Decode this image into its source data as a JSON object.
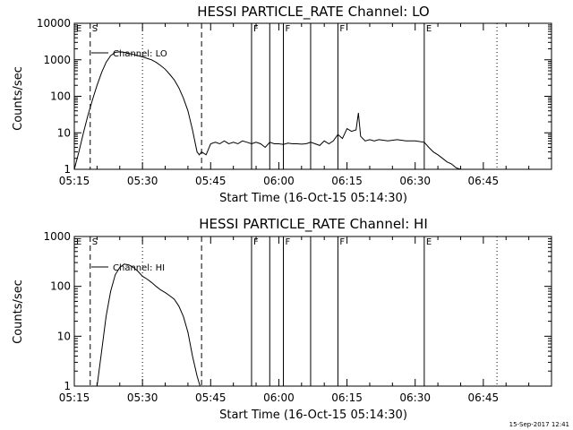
{
  "footer": {
    "timestamp": "15-Sep-2017 12:41"
  },
  "chart_data": [
    {
      "type": "line",
      "title": "HESSI PARTICLE_RATE Channel: LO",
      "xlabel": "Start Time (16-Oct-15 05:14:30)",
      "ylabel": "Counts/sec",
      "yscale": "log",
      "ylim": [
        1,
        10000
      ],
      "xlim": [
        "05:15",
        "07:00"
      ],
      "x_ticks": [
        "05:15",
        "05:30",
        "05:45",
        "06:00",
        "06:15",
        "06:30",
        "06:45"
      ],
      "y_ticks": [
        "1",
        "10",
        "100",
        "1000",
        "10000"
      ],
      "legend": {
        "label": "Channel: LO",
        "placement": "top-left"
      },
      "grid": false,
      "series": [
        {
          "x": [
            "05:15:00",
            "05:16:00",
            "05:17:00",
            "05:18:00",
            "05:19:00",
            "05:20:00",
            "05:21:00",
            "05:22:00",
            "05:23:00",
            "05:24:00",
            "05:25:00",
            "05:26:00",
            "05:27:00",
            "05:28:00",
            "05:29:00",
            "05:30:00",
            "05:31:00",
            "05:32:00",
            "05:33:00",
            "05:34:00",
            "05:35:00",
            "05:36:00",
            "05:37:00",
            "05:38:00",
            "05:39:00",
            "05:40:00",
            "05:41:00",
            "05:42:00",
            "05:42:30",
            "05:43:00",
            "05:44:00",
            "05:45:00",
            "05:46:00",
            "05:47:00",
            "05:48:00",
            "05:49:00",
            "05:50:00",
            "05:51:00",
            "05:52:00",
            "05:53:00",
            "05:54:00",
            "05:55:00",
            "05:56:00",
            "05:57:00",
            "05:58:00",
            "05:59:00",
            "06:00:00",
            "06:01:00",
            "06:02:00",
            "06:03:00",
            "06:04:00",
            "06:05:00",
            "06:06:00",
            "06:07:00",
            "06:08:00",
            "06:09:00",
            "06:10:00",
            "06:11:00",
            "06:12:00",
            "06:13:00",
            "06:14:00",
            "06:15:00",
            "06:16:00",
            "06:17:00",
            "06:17:30",
            "06:18:00",
            "06:19:00",
            "06:20:00",
            "06:21:00",
            "06:22:00",
            "06:24:00",
            "06:26:00",
            "06:28:00",
            "06:30:00",
            "06:32:00",
            "06:33:00",
            "06:34:00",
            "06:35:00",
            "06:36:00",
            "06:37:00",
            "06:38:00",
            "06:39:00",
            "06:40:00",
            "06:41:00",
            "06:42:00",
            "06:43:00"
          ],
          "y": [
            1,
            3,
            10,
            30,
            80,
            200,
            450,
            850,
            1300,
            1600,
            1650,
            1600,
            1500,
            1400,
            1300,
            1200,
            1100,
            1000,
            850,
            700,
            550,
            400,
            280,
            170,
            90,
            40,
            12,
            3,
            2.5,
            3,
            2.5,
            5,
            5.5,
            5,
            6,
            5,
            5.5,
            5,
            6,
            5.5,
            5,
            5.5,
            5,
            4,
            5.5,
            5,
            5,
            4.8,
            5.2,
            5,
            5,
            4.9,
            5,
            5.5,
            5,
            4.5,
            6,
            5,
            6,
            9,
            7,
            13,
            11,
            12,
            35,
            8,
            6,
            6.5,
            6,
            6.5,
            6,
            6.5,
            6,
            6,
            5.5,
            4,
            3,
            2.5,
            2,
            1.6,
            1.4,
            1.1,
            1.0,
            1,
            1,
            1
          ]
        }
      ],
      "vlines": [
        {
          "x": "05:18:30",
          "style": "dashed",
          "label": "S"
        },
        {
          "x": "05:43:00",
          "style": "dashed",
          "label": ""
        },
        {
          "x": "05:30:00",
          "style": "dotted",
          "label": ""
        },
        {
          "x": "06:48:00",
          "style": "dotted",
          "label": ""
        },
        {
          "x": "05:54:00",
          "style": "solid",
          "label": "F"
        },
        {
          "x": "05:58:00",
          "style": "solid",
          "label": ""
        },
        {
          "x": "06:01:00",
          "style": "solid",
          "label": "F"
        },
        {
          "x": "06:07:00",
          "style": "solid",
          "label": ""
        },
        {
          "x": "06:13:00",
          "style": "solid",
          "label": "F"
        },
        {
          "x": "06:32:00",
          "style": "solid",
          "label": "E"
        }
      ],
      "edge_label": "E"
    },
    {
      "type": "line",
      "title": "HESSI PARTICLE_RATE Channel: HI",
      "xlabel": "Start Time (16-Oct-15 05:14:30)",
      "ylabel": "Counts/sec",
      "yscale": "log",
      "ylim": [
        1,
        1000
      ],
      "xlim": [
        "05:15",
        "07:00"
      ],
      "x_ticks": [
        "05:15",
        "05:30",
        "05:45",
        "06:00",
        "06:15",
        "06:30",
        "06:45"
      ],
      "y_ticks": [
        "1",
        "10",
        "100",
        "1000"
      ],
      "legend": {
        "label": "Channel: HI",
        "placement": "top-left"
      },
      "grid": false,
      "series": [
        {
          "x": [
            "05:20:00",
            "05:21:00",
            "05:22:00",
            "05:23:00",
            "05:24:00",
            "05:25:00",
            "05:26:00",
            "05:27:00",
            "05:28:00",
            "05:29:00",
            "05:30:00",
            "05:31:00",
            "05:32:00",
            "05:33:00",
            "05:34:00",
            "05:35:00",
            "05:36:00",
            "05:37:00",
            "05:38:00",
            "05:39:00",
            "05:40:00",
            "05:41:00",
            "05:42:00",
            "05:42:40"
          ],
          "y": [
            1,
            5,
            25,
            80,
            170,
            240,
            280,
            270,
            240,
            200,
            160,
            140,
            120,
            100,
            85,
            75,
            65,
            55,
            40,
            25,
            12,
            4,
            1.6,
            1
          ]
        }
      ],
      "vlines": [
        {
          "x": "05:18:30",
          "style": "dashed",
          "label": "S"
        },
        {
          "x": "05:43:00",
          "style": "dashed",
          "label": ""
        },
        {
          "x": "05:30:00",
          "style": "dotted",
          "label": ""
        },
        {
          "x": "06:48:00",
          "style": "dotted",
          "label": ""
        },
        {
          "x": "05:54:00",
          "style": "solid",
          "label": "F"
        },
        {
          "x": "05:58:00",
          "style": "solid",
          "label": ""
        },
        {
          "x": "06:01:00",
          "style": "solid",
          "label": "F"
        },
        {
          "x": "06:07:00",
          "style": "solid",
          "label": ""
        },
        {
          "x": "06:13:00",
          "style": "solid",
          "label": "F"
        },
        {
          "x": "06:32:00",
          "style": "solid",
          "label": "E"
        }
      ],
      "edge_label": "E"
    }
  ]
}
